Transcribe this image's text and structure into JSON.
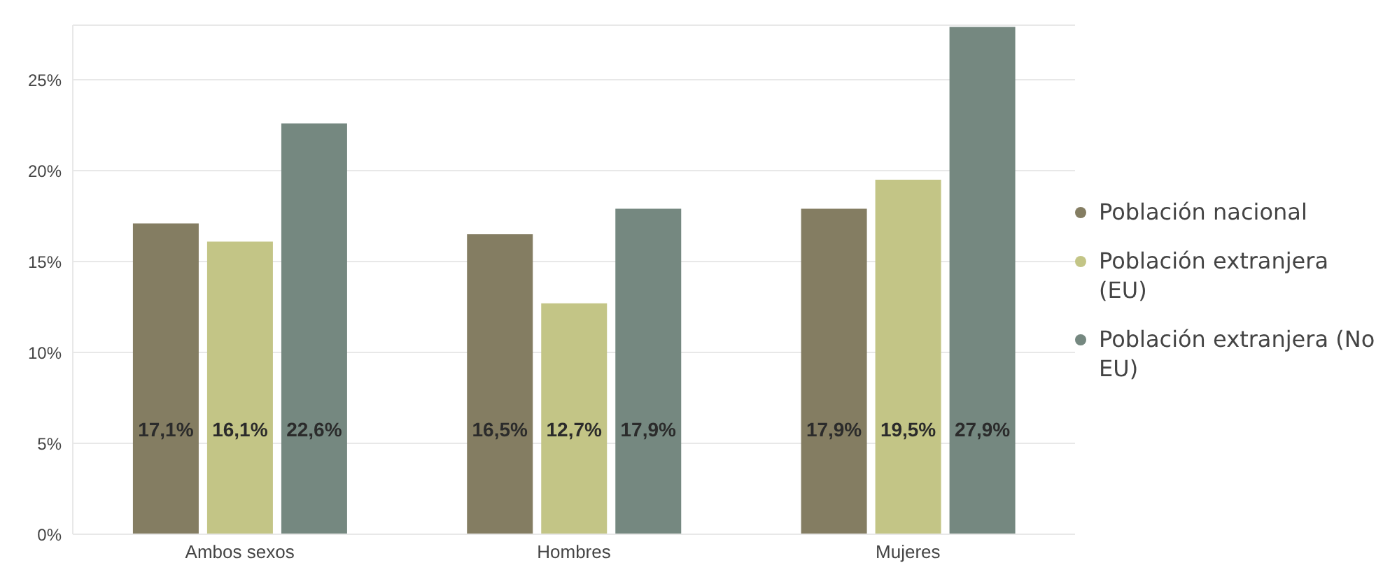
{
  "chart_data": {
    "type": "bar",
    "categories": [
      "Ambos sexos",
      "Hombres",
      "Mujeres"
    ],
    "series": [
      {
        "name": "Población nacional",
        "color": "#847d62",
        "values": [
          17.1,
          16.5,
          17.9
        ],
        "value_labels": [
          "17,1%",
          "16,5%",
          "17,9%"
        ]
      },
      {
        "name": "Población extranjera (EU)",
        "color": "#c3c586",
        "values": [
          16.1,
          12.7,
          19.5
        ],
        "value_labels": [
          "16,1%",
          "12,7%",
          "19,5%"
        ]
      },
      {
        "name": "Población extranjera (No EU)",
        "color": "#758880",
        "values": [
          22.6,
          17.9,
          27.9
        ],
        "value_labels": [
          "22,6%",
          "17,9%",
          "27,9%"
        ]
      }
    ],
    "ylim": [
      0,
      28
    ],
    "yticks": [
      {
        "value": 0,
        "label": "0%"
      },
      {
        "value": 5,
        "label": "5%"
      },
      {
        "value": 10,
        "label": "10%"
      },
      {
        "value": 15,
        "label": "15%"
      },
      {
        "value": 20,
        "label": "20%"
      },
      {
        "value": 25,
        "label": "25%"
      }
    ],
    "grid": "y",
    "legend": "right"
  }
}
